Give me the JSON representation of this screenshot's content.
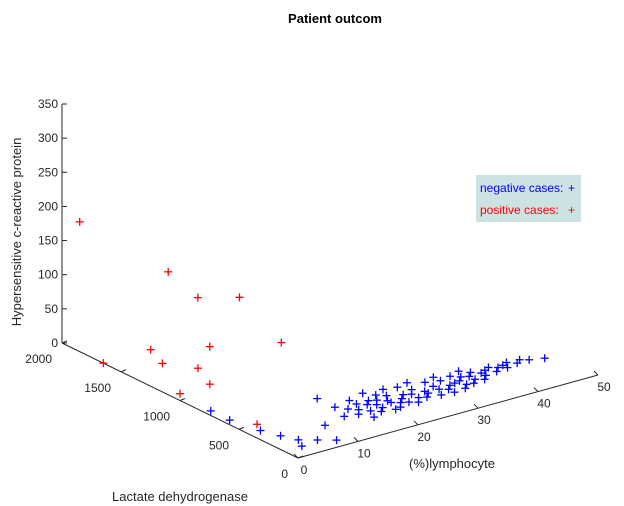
{
  "chart_data": {
    "type": "scatter",
    "title": "Patient outcom",
    "xlabel": "(%)lymphocyte",
    "ylabel": "Lactate dehydrogenase",
    "zlabel": "Hypersensitive c-reactive protein",
    "xlim": [
      0,
      50
    ],
    "ylim": [
      0,
      2000
    ],
    "zlim": [
      0,
      350
    ],
    "x_ticks": [
      "0",
      "10",
      "20",
      "30",
      "40",
      "50"
    ],
    "y_ticks": [
      "0",
      "500",
      "1000",
      "1500",
      "2000"
    ],
    "z_ticks": [
      "0",
      "50",
      "100",
      "150",
      "200",
      "250",
      "300",
      "350"
    ],
    "grid": false,
    "legend_position": "upper-right",
    "series": [
      {
        "name": "negative cases:",
        "marker": "+",
        "color": "#0000ff",
        "points": [
          [
            3,
            300,
            0
          ],
          [
            3,
            120,
            0
          ],
          [
            2,
            420,
            0
          ],
          [
            1,
            630,
            0
          ],
          [
            1,
            790,
            0
          ],
          [
            4,
            200,
            0
          ],
          [
            6,
            140,
            0
          ],
          [
            8,
            80,
            0
          ],
          [
            10,
            280,
            0
          ],
          [
            14,
            320,
            0
          ],
          [
            15,
            450,
            0
          ],
          [
            16,
            390,
            0
          ],
          [
            15,
            600,
            0
          ],
          [
            17,
            220,
            0
          ],
          [
            18,
            300,
            0
          ],
          [
            20,
            350,
            0
          ],
          [
            22,
            330,
            0
          ],
          [
            21,
            520,
            0
          ],
          [
            24,
            280,
            0
          ],
          [
            25,
            380,
            0
          ],
          [
            23,
            420,
            0
          ],
          [
            26,
            300,
            0
          ],
          [
            27,
            410,
            0
          ],
          [
            28,
            350,
            0
          ],
          [
            30,
            380,
            0
          ],
          [
            31,
            300,
            0
          ],
          [
            32,
            420,
            0
          ],
          [
            33,
            350,
            0
          ],
          [
            34,
            360,
            0
          ],
          [
            35,
            400,
            0
          ],
          [
            36,
            380,
            0
          ],
          [
            37,
            420,
            0
          ],
          [
            38,
            380,
            0
          ],
          [
            39,
            400,
            0
          ],
          [
            40,
            420,
            0
          ],
          [
            41,
            390,
            0
          ],
          [
            42,
            400,
            0
          ],
          [
            44,
            380,
            0
          ],
          [
            45,
            410,
            0
          ],
          [
            46,
            380,
            0
          ],
          [
            48,
            350,
            0
          ],
          [
            19,
            260,
            0
          ],
          [
            21,
            240,
            0
          ],
          [
            23,
            300,
            0
          ],
          [
            25,
            250,
            0
          ],
          [
            27,
            280,
            0
          ],
          [
            29,
            260,
            0
          ],
          [
            31,
            250,
            0
          ],
          [
            33,
            260,
            0
          ],
          [
            35,
            290,
            0
          ],
          [
            37,
            300,
            0
          ],
          [
            20,
            420,
            0
          ],
          [
            22,
            460,
            0
          ],
          [
            24,
            500,
            0
          ],
          [
            26,
            480,
            0
          ],
          [
            28,
            500,
            0
          ],
          [
            30,
            450,
            0
          ],
          [
            32,
            480,
            0
          ],
          [
            34,
            440,
            0
          ],
          [
            36,
            470,
            0
          ],
          [
            18,
            480,
            0
          ],
          [
            19,
            380,
            0
          ],
          [
            21,
            400,
            0
          ],
          [
            22,
            360,
            0
          ],
          [
            24,
            340,
            0
          ],
          [
            26,
            360,
            0
          ],
          [
            28,
            320,
            0
          ],
          [
            30,
            330,
            0
          ],
          [
            32,
            340,
            0
          ],
          [
            34,
            300,
            0
          ],
          [
            36,
            330,
            0
          ],
          [
            38,
            340,
            0
          ],
          [
            40,
            350,
            0
          ],
          [
            42,
            360,
            0
          ],
          [
            43,
            420,
            0
          ],
          [
            17,
            350,
            0
          ],
          [
            16,
            300,
            0
          ],
          [
            18,
            420,
            0
          ],
          [
            20,
            300,
            0
          ],
          [
            22,
            250,
            0
          ]
        ]
      },
      {
        "name": "positive cases:",
        "marker": "+",
        "color": "#ff0000",
        "points": [
          [
            0,
            1850,
            190
          ],
          [
            0,
            1100,
            180
          ],
          [
            5,
            750,
            160
          ],
          [
            2,
            950,
            150
          ],
          [
            10,
            650,
            90
          ],
          [
            3,
            900,
            80
          ],
          [
            3,
            1000,
            40
          ],
          [
            2,
            1350,
            40
          ],
          [
            1,
            1200,
            35
          ],
          [
            3,
            900,
            25
          ],
          [
            0,
            1000,
            10
          ],
          [
            0,
            1650,
            0
          ],
          [
            3,
            500,
            0
          ]
        ]
      }
    ]
  }
}
